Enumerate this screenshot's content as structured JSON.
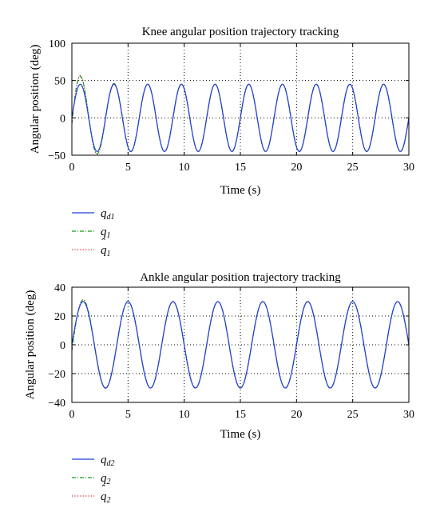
{
  "chart_data": [
    {
      "type": "line",
      "title": "Knee angular position trajectory tracking",
      "xlabel": "Time (s)",
      "ylabel": "Angular position (deg)",
      "xlim": [
        0,
        30
      ],
      "ylim": [
        -50,
        100
      ],
      "xticks": [
        0,
        5,
        10,
        15,
        20,
        25,
        30
      ],
      "yticks": [
        -50,
        0,
        50,
        100
      ],
      "grid": true,
      "legend_position": "below",
      "series": [
        {
          "name": "q_d1",
          "label_base": "q",
          "label_sub": "d1",
          "hat": false,
          "style": "solid",
          "color": "#1f3fd9",
          "amplitude": 45,
          "period": 3,
          "overshoot": 0,
          "overshoot_decay": 1.2
        },
        {
          "name": "q_1",
          "label_base": "q",
          "label_sub": "1",
          "hat": false,
          "style": "dashdot",
          "color": "#1a9a1a",
          "amplitude": 45,
          "period": 3,
          "overshoot": 20,
          "overshoot_decay": 1.2
        },
        {
          "name": "q̂_1",
          "label_base": "q",
          "label_sub": "1",
          "hat": true,
          "style": "dotted",
          "color": "#e02020",
          "amplitude": 45,
          "period": 3,
          "overshoot": 22,
          "overshoot_decay": 1.2
        }
      ]
    },
    {
      "type": "line",
      "title": "Ankle angular position trajectory tracking",
      "xlabel": "Time (s)",
      "ylabel": "Angular position (deg)",
      "xlim": [
        0,
        30
      ],
      "ylim": [
        -40,
        40
      ],
      "xticks": [
        0,
        5,
        10,
        15,
        20,
        25,
        30
      ],
      "yticks": [
        -40,
        -20,
        0,
        20,
        40
      ],
      "grid": true,
      "legend_position": "below",
      "series": [
        {
          "name": "q_d2",
          "label_base": "q",
          "label_sub": "d2",
          "hat": false,
          "style": "solid",
          "color": "#1f3fd9",
          "amplitude": 30,
          "period": 4,
          "overshoot": 0,
          "overshoot_decay": 1.0
        },
        {
          "name": "q_2",
          "label_base": "q",
          "label_sub": "2",
          "hat": false,
          "style": "dashdot",
          "color": "#1a9a1a",
          "amplitude": 30,
          "period": 4,
          "overshoot": 3,
          "overshoot_decay": 1.0
        },
        {
          "name": "q̂_2",
          "label_base": "q",
          "label_sub": "2",
          "hat": true,
          "style": "dotted",
          "color": "#e02020",
          "amplitude": 30,
          "period": 4,
          "overshoot": 4,
          "overshoot_decay": 1.0
        }
      ]
    }
  ]
}
